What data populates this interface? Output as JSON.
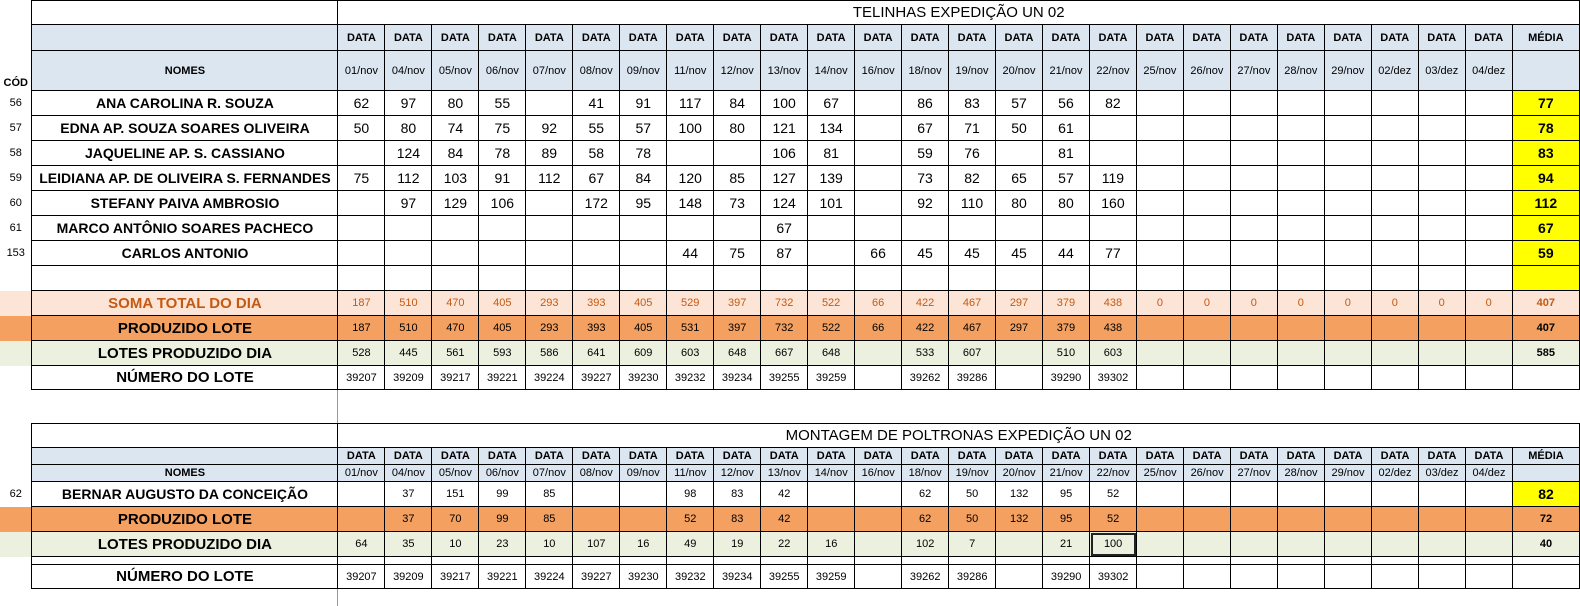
{
  "dates": [
    "01/nov",
    "04/nov",
    "05/nov",
    "06/nov",
    "07/nov",
    "08/nov",
    "09/nov",
    "11/nov",
    "12/nov",
    "13/nov",
    "14/nov",
    "16/nov",
    "18/nov",
    "19/nov",
    "20/nov",
    "21/nov",
    "22/nov",
    "25/nov",
    "26/nov",
    "27/nov",
    "28/nov",
    "29/nov",
    "02/dez",
    "03/dez",
    "04/dez"
  ],
  "labels": {
    "data": "DATA",
    "media": "MÉDIA",
    "nomes": "NOMES",
    "cod": "CÓD"
  },
  "colors": {
    "header_bg": "#dce6f1",
    "title": "#e00000",
    "avg": "#ffff00",
    "avg_alt": "#ffc000",
    "soma_bg": "#fce4d6",
    "soma_text": "#c65911",
    "prod_bg": "#f4a060",
    "lotes_bg": "#ebf1de"
  },
  "table1": {
    "title": "TELINHAS EXPEDIÇÃO UN 02",
    "rows": [
      {
        "cod": "56",
        "name": "ANA CAROLINA R. SOUZA",
        "values": [
          "62",
          "97",
          "80",
          "55",
          "",
          "41",
          "91",
          "117",
          "84",
          "100",
          "67",
          "",
          "86",
          "83",
          "57",
          "56",
          "82",
          "",
          "",
          "",
          "",
          "",
          "",
          "",
          ""
        ],
        "avg": "77"
      },
      {
        "cod": "57",
        "name": "EDNA AP. SOUZA SOARES OLIVEIRA",
        "values": [
          "50",
          "80",
          "74",
          "75",
          "92",
          "55",
          "57",
          "100",
          "80",
          "121",
          "134",
          "",
          "67",
          "71",
          "50",
          "61",
          "",
          "",
          "",
          "",
          "",
          "",
          "",
          "",
          ""
        ],
        "avg": "78"
      },
      {
        "cod": "58",
        "name": "JAQUELINE AP.  S. CASSIANO",
        "values": [
          "",
          "124",
          "84",
          "78",
          "89",
          "58",
          "78",
          "",
          "",
          "106",
          "81",
          "",
          "59",
          "76",
          "",
          "81",
          "",
          "",
          "",
          "",
          "",
          "",
          "",
          "",
          ""
        ],
        "avg": "83"
      },
      {
        "cod": "59",
        "name": "LEIDIANA AP. DE OLIVEIRA S. FERNANDES",
        "values": [
          "75",
          "112",
          "103",
          "91",
          "112",
          "67",
          "84",
          "120",
          "85",
          "127",
          "139",
          "",
          "73",
          "82",
          "65",
          "57",
          "119",
          "",
          "",
          "",
          "",
          "",
          "",
          "",
          ""
        ],
        "avg": "94"
      },
      {
        "cod": "60",
        "name": "STEFANY PAIVA AMBROSIO",
        "values": [
          "",
          "97",
          "129",
          "106",
          "",
          "172",
          "95",
          "148",
          "73",
          "124",
          "101",
          "",
          "92",
          "110",
          "80",
          "80",
          "160",
          "",
          "",
          "",
          "",
          "",
          "",
          "",
          ""
        ],
        "avg": "112"
      },
      {
        "cod": "61",
        "name": "MARCO ANTÔNIO SOARES PACHECO",
        "values": [
          "",
          "",
          "",
          "",
          "",
          "",
          "",
          "",
          "",
          "67",
          "",
          "",
          "",
          "",
          "",
          "",
          "",
          "",
          "",
          "",
          "",
          "",
          "",
          "",
          ""
        ],
        "avg": "67"
      },
      {
        "cod": "153",
        "name": "CARLOS ANTONIO",
        "values": [
          "",
          "",
          "",
          "",
          "",
          "",
          "",
          "44",
          "75",
          "87",
          "",
          "66",
          "45",
          "45",
          "45",
          "44",
          "77",
          "",
          "",
          "",
          "",
          "",
          "",
          "",
          ""
        ],
        "avg": "59"
      }
    ],
    "soma": {
      "label": "SOMA TOTAL DO DIA",
      "values": [
        "187",
        "510",
        "470",
        "405",
        "293",
        "393",
        "405",
        "529",
        "397",
        "732",
        "522",
        "66",
        "422",
        "467",
        "297",
        "379",
        "438",
        "0",
        "0",
        "0",
        "0",
        "0",
        "0",
        "0",
        "0"
      ],
      "avg": "407"
    },
    "produzido": {
      "label": "PRODUZIDO LOTE",
      "values": [
        "187",
        "510",
        "470",
        "405",
        "293",
        "393",
        "405",
        "531",
        "397",
        "732",
        "522",
        "66",
        "422",
        "467",
        "297",
        "379",
        "438",
        "",
        "",
        "",
        "",
        "",
        "",
        "",
        ""
      ],
      "avg": "407"
    },
    "lotes": {
      "label": "LOTES PRODUZIDO DIA",
      "values": [
        "528",
        "445",
        "561",
        "593",
        "586",
        "641",
        "609",
        "603",
        "648",
        "667",
        "648",
        "",
        "533",
        "607",
        "",
        "510",
        "603",
        "",
        "",
        "",
        "",
        "",
        "",
        "",
        ""
      ],
      "avg": "585"
    },
    "numero": {
      "label": "NÚMERO DO LOTE",
      "values": [
        "39207",
        "39209",
        "39217",
        "39221",
        "39224",
        "39227",
        "39230",
        "39232",
        "39234",
        "39255",
        "39259",
        "",
        "39262",
        "39286",
        "",
        "39290",
        "39302",
        "",
        "",
        "",
        "",
        "",
        "",
        "",
        ""
      ]
    }
  },
  "table2": {
    "title": "MONTAGEM DE POLTRONAS EXPEDIÇÃO UN 02",
    "rows": [
      {
        "cod": "62",
        "name": "BERNAR AUGUSTO DA CONCEIÇÃO",
        "values": [
          "",
          "37",
          "151",
          "99",
          "85",
          "",
          "",
          "98",
          "83",
          "42",
          "",
          "",
          "62",
          "50",
          "132",
          "95",
          "52",
          "",
          "",
          "",
          "",
          "",
          "",
          "",
          ""
        ],
        "avg": "82"
      }
    ],
    "produzido": {
      "label": "PRODUZIDO LOTE",
      "values": [
        "",
        "37",
        "70",
        "99",
        "85",
        "",
        "",
        "52",
        "83",
        "42",
        "",
        "",
        "62",
        "50",
        "132",
        "95",
        "52",
        "",
        "",
        "",
        "",
        "",
        "",
        "",
        ""
      ],
      "avg": "72"
    },
    "lotes": {
      "label": "LOTES PRODUZIDO DIA",
      "values": [
        "64",
        "35",
        "10",
        "23",
        "10",
        "107",
        "16",
        "49",
        "19",
        "22",
        "16",
        "",
        "102",
        "7",
        "",
        "21",
        "100",
        "",
        "",
        "",
        "",
        "",
        "",
        "",
        ""
      ],
      "avg": "40"
    },
    "numero": {
      "label": "NÚMERO DO LOTE",
      "values": [
        "39207",
        "39209",
        "39217",
        "39221",
        "39224",
        "39227",
        "39230",
        "39232",
        "39234",
        "39255",
        "39259",
        "",
        "39262",
        "39286",
        "",
        "39290",
        "39302",
        "",
        "",
        "",
        "",
        "",
        "",
        "",
        ""
      ]
    }
  }
}
